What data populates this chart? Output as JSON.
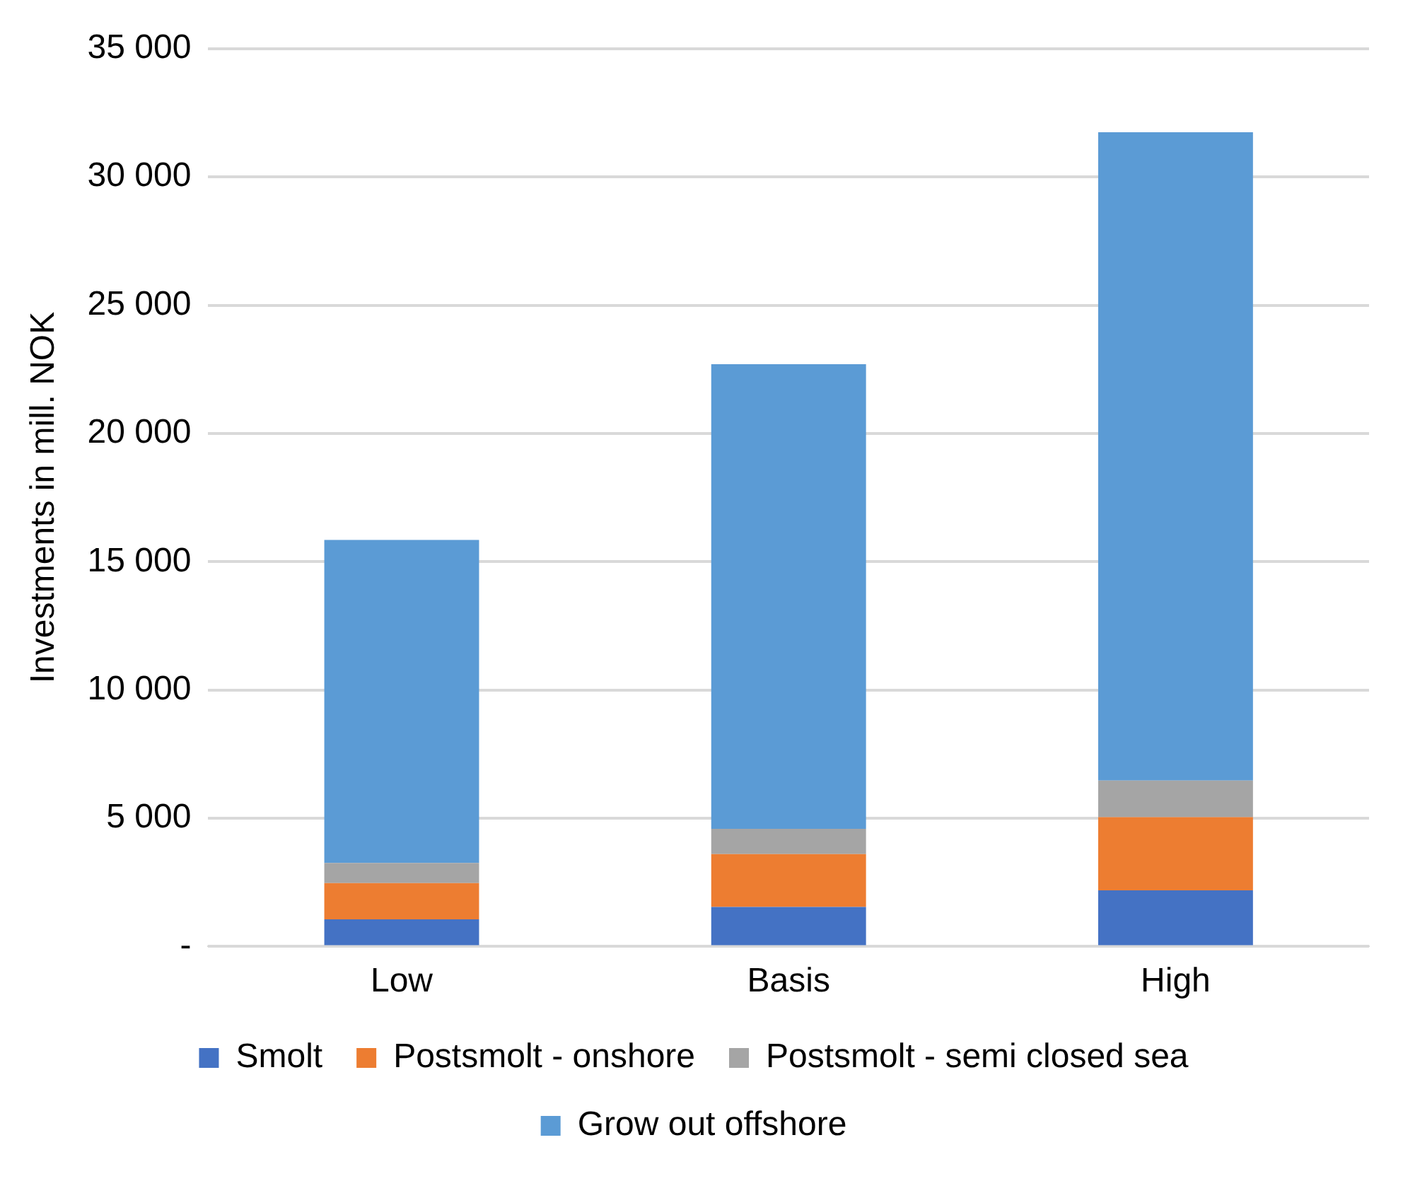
{
  "chart_data": {
    "type": "bar",
    "stacked": true,
    "ylabel": "Investments in mill. NOK",
    "categories": [
      "Low",
      "Basis",
      "High"
    ],
    "series": [
      {
        "name": "Smolt",
        "color": "#4472c4",
        "values": [
          1060,
          1540,
          2190
        ]
      },
      {
        "name": "Postsmolt - onshore",
        "color": "#ed7d31",
        "values": [
          1410,
          2060,
          2850
        ]
      },
      {
        "name": "Postsmolt - semi closed sea",
        "color": "#a5a5a5",
        "values": [
          790,
          990,
          1430
        ]
      },
      {
        "name": "Grow out offshore",
        "color": "#5b9bd5",
        "values": [
          12590,
          18110,
          25270
        ]
      }
    ],
    "ylim": [
      0,
      35000
    ],
    "yticks": [
      {
        "value": 0,
        "label": "-"
      },
      {
        "value": 5000,
        "label": "5 000"
      },
      {
        "value": 10000,
        "label": "10 000"
      },
      {
        "value": 15000,
        "label": "15 000"
      },
      {
        "value": 20000,
        "label": "20 000"
      },
      {
        "value": 25000,
        "label": "25 000"
      },
      {
        "value": 30000,
        "label": "30 000"
      },
      {
        "value": 35000,
        "label": "35 000"
      }
    ],
    "grid": "y",
    "legend": "bottom"
  }
}
